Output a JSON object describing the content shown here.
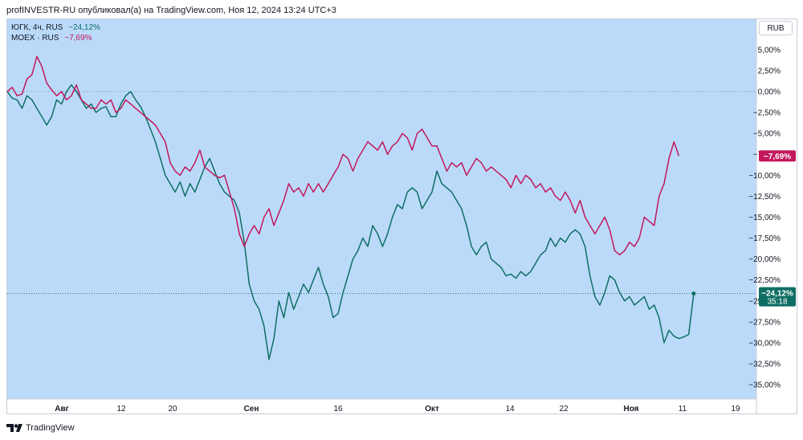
{
  "header": {
    "publish_line": "profINVESTR-RU опубликовал(а) на TradingView.com, Ноя 12, 2024 13:24 UTC+3"
  },
  "legend": [
    {
      "label": "ЮГК, 4ч, RUS",
      "value": "−24,12%",
      "color": "#0f6e63"
    },
    {
      "label": "MOEX · RUS",
      "value": "−7,69%",
      "color": "#c2185b"
    }
  ],
  "currency": "RUB",
  "footer": {
    "brand": "TradingView"
  },
  "colors": {
    "background": "#bbdafa",
    "ugk": "#0f6e63",
    "moex": "#c2185b",
    "axis_text": "#131722"
  },
  "chart_data": {
    "type": "line",
    "x_tick_labels": [
      "Авг",
      "12",
      "20",
      "Сен",
      "16",
      "Окт",
      "14",
      "22",
      "Ноя",
      "11",
      "19"
    ],
    "y_tick_labels": [
      "5,00%",
      "2,50%",
      "0,00%",
      "−2,50%",
      "−5,00%",
      "−7,50%",
      "−10,00%",
      "−12,50%",
      "−15,00%",
      "−17,50%",
      "−20,00%",
      "−22,50%",
      "−25,00%",
      "−27,50%",
      "−30,00%",
      "−32,50%",
      "−35,00%"
    ],
    "ylim": [
      -37.5,
      7.5
    ],
    "unit": "%",
    "zero_line": 0,
    "badges": [
      {
        "series": "MOEX",
        "label": "−7,69%",
        "value": -7.69,
        "color": "#c2185b"
      },
      {
        "series": "ЮГК",
        "label": "−24,12%",
        "sublabel": "35:18",
        "value": -24.12,
        "color": "#0f6e63"
      }
    ],
    "series": [
      {
        "name": "ЮГК",
        "color": "#0f6e63",
        "points": [
          [
            0,
            0
          ],
          [
            1,
            -0.8
          ],
          [
            2,
            -1
          ],
          [
            3,
            -2
          ],
          [
            4,
            -0.5
          ],
          [
            5,
            -1
          ],
          [
            6,
            -2
          ],
          [
            7,
            -3
          ],
          [
            8,
            -4
          ],
          [
            9,
            -3
          ],
          [
            10,
            -1
          ],
          [
            11,
            -1.5
          ],
          [
            12,
            0
          ],
          [
            13,
            0.8
          ],
          [
            14,
            0
          ],
          [
            15,
            -1
          ],
          [
            16,
            -2
          ],
          [
            17,
            -1.5
          ],
          [
            18,
            -2.5
          ],
          [
            19,
            -2
          ],
          [
            20,
            -1.8
          ],
          [
            21,
            -3
          ],
          [
            22,
            -3
          ],
          [
            23,
            -1.5
          ],
          [
            24,
            -0.5
          ],
          [
            25,
            0
          ],
          [
            26,
            -1
          ],
          [
            27,
            -1.8
          ],
          [
            28,
            -3
          ],
          [
            29,
            -4.5
          ],
          [
            30,
            -6
          ],
          [
            31,
            -8
          ],
          [
            32,
            -10
          ],
          [
            33,
            -11
          ],
          [
            34,
            -12
          ],
          [
            35,
            -10.8
          ],
          [
            36,
            -12.5
          ],
          [
            37,
            -11
          ],
          [
            38,
            -12
          ],
          [
            39,
            -10.5
          ],
          [
            40,
            -9
          ],
          [
            41,
            -8
          ],
          [
            42,
            -9.5
          ],
          [
            43,
            -11
          ],
          [
            44,
            -12
          ],
          [
            45,
            -12.5
          ],
          [
            46,
            -13
          ],
          [
            47,
            -14.5
          ],
          [
            48,
            -18
          ],
          [
            49,
            -23
          ],
          [
            50,
            -25
          ],
          [
            51,
            -26
          ],
          [
            52,
            -28
          ],
          [
            53,
            -32
          ],
          [
            54,
            -29.5
          ],
          [
            55,
            -25
          ],
          [
            56,
            -27
          ],
          [
            57,
            -24
          ],
          [
            58,
            -26
          ],
          [
            59,
            -24.5
          ],
          [
            60,
            -23
          ],
          [
            61,
            -24
          ],
          [
            62,
            -22.5
          ],
          [
            63,
            -21
          ],
          [
            64,
            -23
          ],
          [
            65,
            -24.5
          ],
          [
            66,
            -27
          ],
          [
            67,
            -26.5
          ],
          [
            68,
            -24
          ],
          [
            69,
            -22
          ],
          [
            70,
            -20
          ],
          [
            71,
            -19
          ],
          [
            72,
            -17.5
          ],
          [
            73,
            -18.5
          ],
          [
            74,
            -16
          ],
          [
            75,
            -17
          ],
          [
            76,
            -18.5
          ],
          [
            77,
            -17
          ],
          [
            78,
            -15
          ],
          [
            79,
            -13.5
          ],
          [
            80,
            -14
          ],
          [
            81,
            -12
          ],
          [
            82,
            -11.5
          ],
          [
            83,
            -12
          ],
          [
            84,
            -14
          ],
          [
            85,
            -13
          ],
          [
            86,
            -12
          ],
          [
            87,
            -9.5
          ],
          [
            88,
            -11
          ],
          [
            89,
            -11.5
          ],
          [
            90,
            -12
          ],
          [
            91,
            -13
          ],
          [
            92,
            -14
          ],
          [
            93,
            -16
          ],
          [
            94,
            -18.5
          ],
          [
            95,
            -19.5
          ],
          [
            96,
            -18.5
          ],
          [
            97,
            -18
          ],
          [
            98,
            -20
          ],
          [
            99,
            -20.5
          ],
          [
            100,
            -21
          ],
          [
            101,
            -22
          ],
          [
            102,
            -21.8
          ],
          [
            103,
            -22.3
          ],
          [
            104,
            -21.5
          ],
          [
            105,
            -22
          ],
          [
            106,
            -21.5
          ],
          [
            107,
            -20.5
          ],
          [
            108,
            -19.5
          ],
          [
            109,
            -19
          ],
          [
            110,
            -17.5
          ],
          [
            111,
            -18.5
          ],
          [
            112,
            -17.5
          ],
          [
            113,
            -18
          ],
          [
            114,
            -17
          ],
          [
            115,
            -16.5
          ],
          [
            116,
            -17
          ],
          [
            117,
            -18.5
          ],
          [
            118,
            -22
          ],
          [
            119,
            -24.5
          ],
          [
            120,
            -25.5
          ],
          [
            121,
            -24
          ],
          [
            122,
            -22
          ],
          [
            123,
            -22.5
          ],
          [
            124,
            -24
          ],
          [
            125,
            -25
          ],
          [
            126,
            -24.5
          ],
          [
            127,
            -25.5
          ],
          [
            128,
            -25
          ],
          [
            129,
            -24.5
          ],
          [
            130,
            -26
          ],
          [
            131,
            -25.5
          ],
          [
            132,
            -27
          ],
          [
            133,
            -30
          ],
          [
            134,
            -28.5
          ],
          [
            135,
            -29.2
          ],
          [
            136,
            -29.5
          ],
          [
            137,
            -29.3
          ],
          [
            138,
            -29
          ],
          [
            139,
            -24.12
          ]
        ]
      },
      {
        "name": "MOEX",
        "color": "#c2185b",
        "points": [
          [
            0,
            0
          ],
          [
            1,
            0.5
          ],
          [
            2,
            -0.5
          ],
          [
            3,
            -0.3
          ],
          [
            4,
            1.5
          ],
          [
            5,
            2
          ],
          [
            6,
            4.2
          ],
          [
            7,
            3
          ],
          [
            8,
            1
          ],
          [
            9,
            0.2
          ],
          [
            10,
            -0.5
          ],
          [
            11,
            0
          ],
          [
            12,
            -1
          ],
          [
            13,
            -0.5
          ],
          [
            14,
            0.8
          ],
          [
            15,
            -1
          ],
          [
            16,
            -1.5
          ],
          [
            17,
            -2
          ],
          [
            18,
            -2
          ],
          [
            19,
            -1
          ],
          [
            20,
            -1.5
          ],
          [
            21,
            -1
          ],
          [
            22,
            -2.5
          ],
          [
            23,
            -2
          ],
          [
            24,
            -1
          ],
          [
            25,
            -1.5
          ],
          [
            26,
            -2
          ],
          [
            27,
            -2.5
          ],
          [
            28,
            -3
          ],
          [
            29,
            -3.5
          ],
          [
            30,
            -4
          ],
          [
            31,
            -5
          ],
          [
            32,
            -6
          ],
          [
            33,
            -8.5
          ],
          [
            34,
            -9.5
          ],
          [
            35,
            -10
          ],
          [
            36,
            -9
          ],
          [
            37,
            -9.5
          ],
          [
            38,
            -8.5
          ],
          [
            39,
            -7
          ],
          [
            40,
            -9
          ],
          [
            41,
            -9.5
          ],
          [
            42,
            -10
          ],
          [
            43,
            -10.3
          ],
          [
            44,
            -10
          ],
          [
            45,
            -12
          ],
          [
            46,
            -14
          ],
          [
            47,
            -17
          ],
          [
            48,
            -18.5
          ],
          [
            49,
            -17
          ],
          [
            50,
            -16
          ],
          [
            51,
            -17
          ],
          [
            52,
            -15
          ],
          [
            53,
            -14
          ],
          [
            54,
            -16
          ],
          [
            55,
            -14.5
          ],
          [
            56,
            -13
          ],
          [
            57,
            -11
          ],
          [
            58,
            -12
          ],
          [
            59,
            -11.5
          ],
          [
            60,
            -12.5
          ],
          [
            61,
            -11
          ],
          [
            62,
            -12
          ],
          [
            63,
            -11
          ],
          [
            64,
            -12
          ],
          [
            65,
            -11
          ],
          [
            66,
            -10
          ],
          [
            67,
            -9
          ],
          [
            68,
            -7.5
          ],
          [
            69,
            -8
          ],
          [
            70,
            -9.5
          ],
          [
            71,
            -8
          ],
          [
            72,
            -7
          ],
          [
            73,
            -6
          ],
          [
            74,
            -6.5
          ],
          [
            75,
            -7
          ],
          [
            76,
            -6
          ],
          [
            77,
            -7.5
          ],
          [
            78,
            -6.5
          ],
          [
            79,
            -6
          ],
          [
            80,
            -5
          ],
          [
            81,
            -5.5
          ],
          [
            82,
            -7
          ],
          [
            83,
            -5
          ],
          [
            84,
            -4.5
          ],
          [
            85,
            -5.5
          ],
          [
            86,
            -6.5
          ],
          [
            87,
            -6.5
          ],
          [
            88,
            -8
          ],
          [
            89,
            -9.5
          ],
          [
            90,
            -8.5
          ],
          [
            91,
            -9
          ],
          [
            92,
            -8.5
          ],
          [
            93,
            -10
          ],
          [
            94,
            -9
          ],
          [
            95,
            -8
          ],
          [
            96,
            -8.5
          ],
          [
            97,
            -9.5
          ],
          [
            98,
            -9
          ],
          [
            99,
            -9.5
          ],
          [
            100,
            -10
          ],
          [
            101,
            -10.5
          ],
          [
            102,
            -11.5
          ],
          [
            103,
            -10
          ],
          [
            104,
            -11
          ],
          [
            105,
            -10
          ],
          [
            106,
            -10.5
          ],
          [
            107,
            -11.5
          ],
          [
            108,
            -11
          ],
          [
            109,
            -12
          ],
          [
            110,
            -11.5
          ],
          [
            111,
            -12.5
          ],
          [
            112,
            -13
          ],
          [
            113,
            -12
          ],
          [
            114,
            -13
          ],
          [
            115,
            -14.5
          ],
          [
            116,
            -13
          ],
          [
            117,
            -15
          ],
          [
            118,
            -16
          ],
          [
            119,
            -17
          ],
          [
            120,
            -16
          ],
          [
            121,
            -15
          ],
          [
            122,
            -16.5
          ],
          [
            123,
            -19
          ],
          [
            124,
            -19.5
          ],
          [
            125,
            -19
          ],
          [
            126,
            -18
          ],
          [
            127,
            -18.5
          ],
          [
            128,
            -17.5
          ],
          [
            129,
            -15
          ],
          [
            130,
            -15.5
          ],
          [
            131,
            -16
          ],
          [
            132,
            -12.5
          ],
          [
            133,
            -11
          ],
          [
            134,
            -8
          ],
          [
            135,
            -6
          ],
          [
            136,
            -7.69
          ]
        ]
      }
    ]
  }
}
